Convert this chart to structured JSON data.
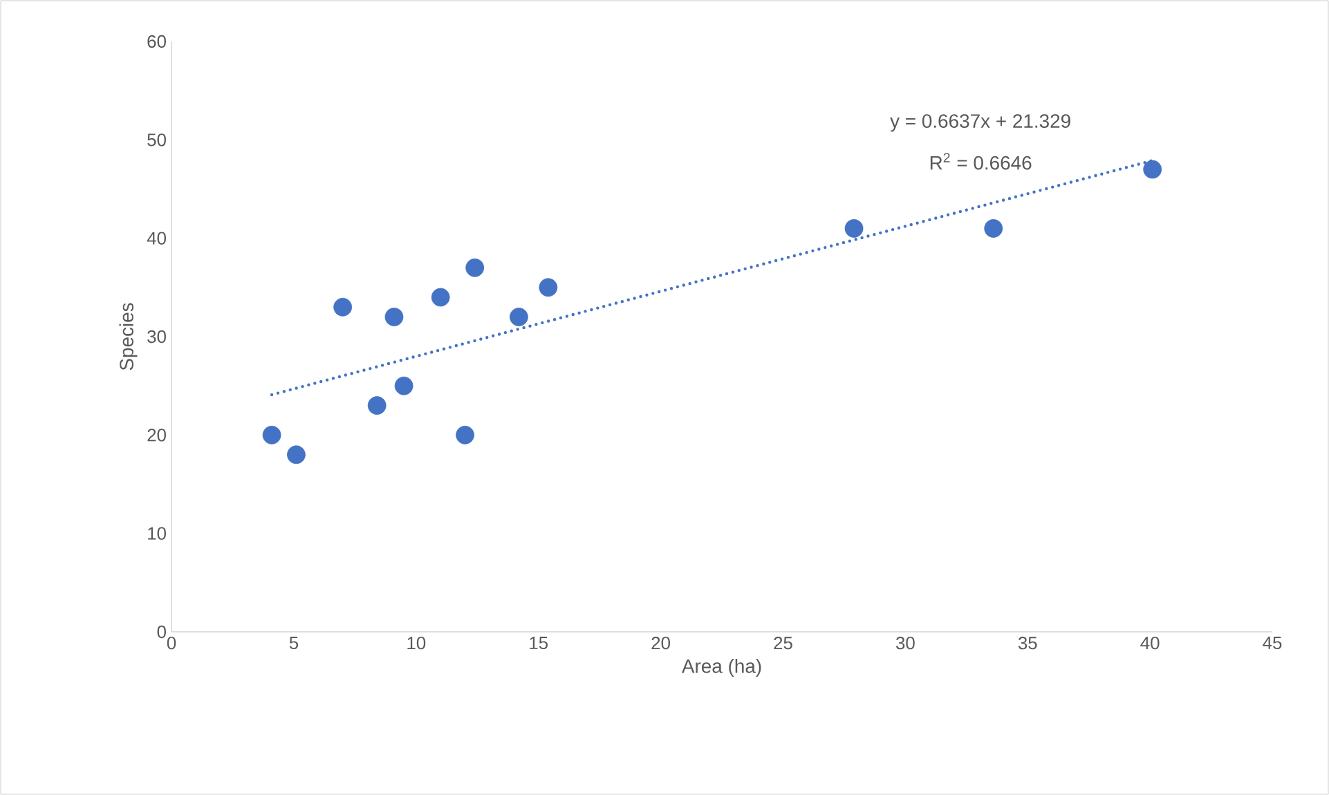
{
  "chart_data": {
    "type": "scatter",
    "xlabel": "Area (ha)",
    "ylabel": "Species",
    "xlim": [
      0,
      45
    ],
    "ylim": [
      0,
      60
    ],
    "xticks": [
      0,
      5,
      10,
      15,
      20,
      25,
      30,
      35,
      40,
      45
    ],
    "yticks": [
      0,
      10,
      20,
      30,
      40,
      50,
      60
    ],
    "grid": false,
    "annotations": [
      "y = 0.6637x + 21.329",
      "R$^{2}$ = 0.6646"
    ],
    "series": [
      {
        "color": "#4472c4",
        "marker": "circle",
        "x": [
          4.1,
          5.1,
          7,
          8.4,
          9.1,
          9.5,
          11,
          12,
          12.4,
          14.2,
          15.4,
          27.9,
          33.6,
          40.1
        ],
        "values": [
          20,
          18,
          33,
          23,
          32,
          25,
          34,
          20,
          37,
          32,
          35,
          41,
          41,
          47
        ]
      },
      {
        "type": "line",
        "color": "#4472c4",
        "line_style": "dotted",
        "marker": "none",
        "x": [
          4.1,
          40.1
        ],
        "values": [
          24.1,
          47.9
        ]
      }
    ]
  }
}
